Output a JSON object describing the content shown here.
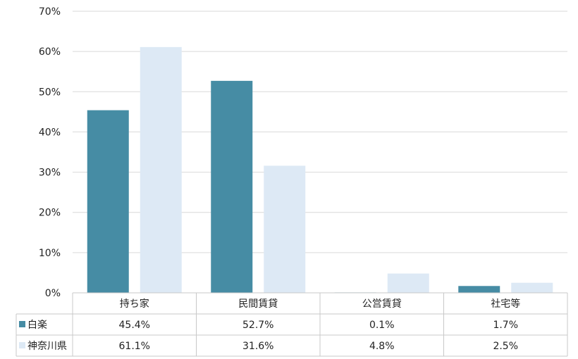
{
  "chart_data": {
    "type": "bar",
    "categories": [
      "持ち家",
      "民間賃貸",
      "公営賃貸",
      "社宅等"
    ],
    "series": [
      {
        "name": "白楽",
        "values": [
          45.4,
          52.7,
          0.1,
          1.7
        ],
        "labels": [
          "45.4%",
          "52.7%",
          "0.1%",
          "1.7%"
        ],
        "color": "#468ca4"
      },
      {
        "name": "神奈川県",
        "values": [
          61.1,
          31.6,
          4.8,
          2.5
        ],
        "labels": [
          "61.1%",
          "31.6%",
          "4.8%",
          "2.5%"
        ],
        "color": "#dde9f5"
      }
    ],
    "yticks": [
      "0%",
      "10%",
      "20%",
      "30%",
      "40%",
      "50%",
      "60%",
      "70%"
    ],
    "ylim": [
      0,
      70
    ],
    "grid": true,
    "legend": "data-table"
  }
}
